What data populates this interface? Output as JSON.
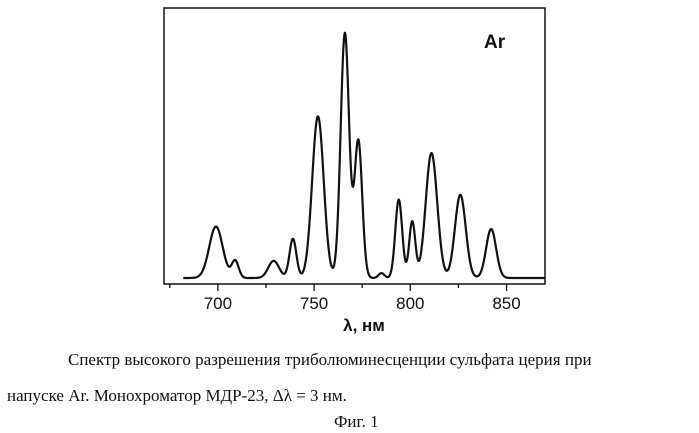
{
  "chart_data": {
    "type": "line",
    "title": "",
    "xlabel": "λ, нм",
    "ylabel": "",
    "annotation": "Ar",
    "xlim": [
      672,
      870
    ],
    "ylim": [
      0,
      1
    ],
    "xticks": [
      700,
      750,
      800,
      850
    ],
    "grid": false,
    "legend": "none",
    "color": "#111111",
    "peaks": [
      {
        "x": 699,
        "y": 0.21,
        "w": 3.5
      },
      {
        "x": 709,
        "y": 0.07,
        "w": 1.8
      },
      {
        "x": 729,
        "y": 0.07,
        "w": 2.8
      },
      {
        "x": 739,
        "y": 0.16,
        "w": 1.8
      },
      {
        "x": 752,
        "y": 0.66,
        "w": 3.0
      },
      {
        "x": 766,
        "y": 1.0,
        "w": 2.2
      },
      {
        "x": 773,
        "y": 0.56,
        "w": 2.0
      },
      {
        "x": 785,
        "y": 0.02,
        "w": 1.5
      },
      {
        "x": 794,
        "y": 0.32,
        "w": 1.8
      },
      {
        "x": 801,
        "y": 0.23,
        "w": 1.6
      },
      {
        "x": 811,
        "y": 0.51,
        "w": 3.0
      },
      {
        "x": 826,
        "y": 0.34,
        "w": 2.8
      },
      {
        "x": 842,
        "y": 0.2,
        "w": 2.6
      }
    ]
  },
  "caption": {
    "line1": "Спектр высокого разрешения триболюминесценции сульфата церия при",
    "line2": "напуске Ar. Монохроматор МДР-23, Δλ = 3 нм.",
    "figure": "Фиг. 1"
  }
}
